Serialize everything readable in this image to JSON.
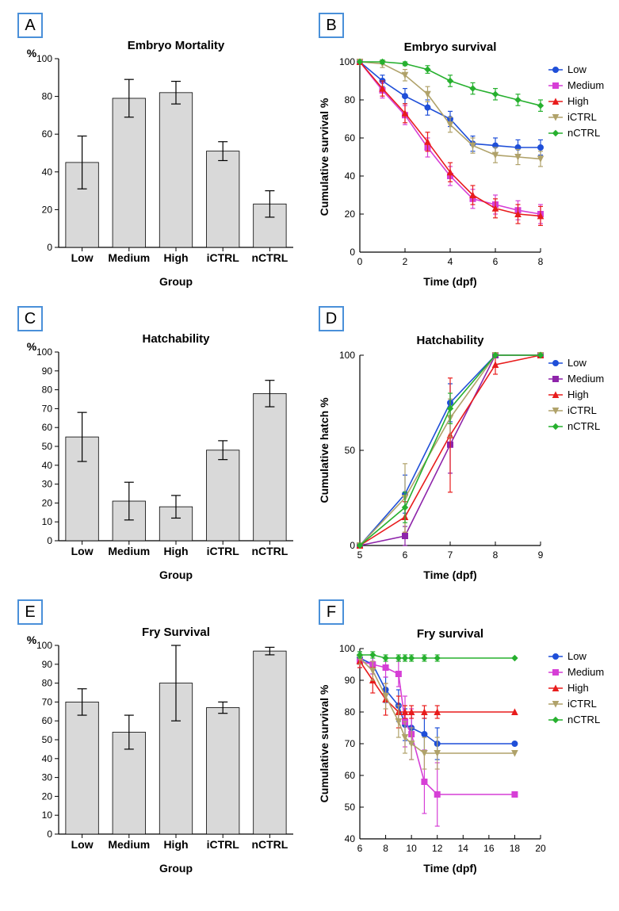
{
  "panels": {
    "A": {
      "label": "A",
      "type": "bar",
      "title": "Embryo Mortality",
      "ylabel": "%",
      "xlabel": "Group",
      "ylim": [
        0,
        100
      ],
      "ytick_step": 20,
      "categories": [
        "Low",
        "Medium",
        "High",
        "iCTRL",
        "nCTRL"
      ],
      "values": [
        45,
        79,
        82,
        51,
        23
      ],
      "errors": [
        14,
        10,
        6,
        5,
        7
      ],
      "bar_fill": "#d9d9d9",
      "bar_stroke": "#000000",
      "bg": "#ffffff",
      "label_fontsize": 12,
      "title_fontsize": 15
    },
    "B": {
      "label": "B",
      "type": "line",
      "title": "Embryo survival",
      "ylabel": "Cumulative survival %",
      "xlabel": "Time (dpf)",
      "xlim": [
        0,
        8
      ],
      "ylim": [
        0,
        100
      ],
      "xtick_step": 2,
      "ytick_step": 20,
      "ticks_inside": true,
      "series": [
        {
          "name": "Low",
          "color": "#1f4fd8",
          "marker": "circle",
          "x": [
            0,
            1,
            2,
            3,
            4,
            5,
            6,
            7,
            8
          ],
          "y": [
            100,
            90,
            82,
            76,
            70,
            57,
            56,
            55,
            55
          ],
          "err": [
            0,
            3,
            4,
            4,
            4,
            4,
            4,
            4,
            4
          ]
        },
        {
          "name": "Medium",
          "color": "#d63fd6",
          "marker": "square",
          "x": [
            0,
            1,
            2,
            3,
            4,
            5,
            6,
            7,
            8
          ],
          "y": [
            100,
            85,
            72,
            55,
            40,
            28,
            25,
            22,
            20
          ],
          "err": [
            0,
            4,
            5,
            5,
            5,
            5,
            5,
            5,
            5
          ]
        },
        {
          "name": "High",
          "color": "#e81c1c",
          "marker": "triangle",
          "x": [
            0,
            1,
            2,
            3,
            4,
            5,
            6,
            7,
            8
          ],
          "y": [
            100,
            86,
            73,
            58,
            42,
            30,
            23,
            20,
            19
          ],
          "err": [
            0,
            4,
            5,
            5,
            5,
            5,
            5,
            5,
            5
          ]
        },
        {
          "name": "iCTRL",
          "color": "#b0a26a",
          "marker": "invtriangle",
          "x": [
            0,
            1,
            2,
            3,
            4,
            5,
            6,
            7,
            8
          ],
          "y": [
            100,
            99,
            93,
            83,
            67,
            56,
            51,
            50,
            49
          ],
          "err": [
            0,
            2,
            3,
            4,
            4,
            4,
            4,
            4,
            4
          ]
        },
        {
          "name": "nCTRL",
          "color": "#27b02f",
          "marker": "diamond",
          "x": [
            0,
            1,
            2,
            3,
            4,
            5,
            6,
            7,
            8
          ],
          "y": [
            100,
            100,
            99,
            96,
            90,
            86,
            83,
            80,
            77
          ],
          "err": [
            0,
            1,
            1,
            2,
            3,
            3,
            3,
            3,
            3
          ]
        }
      ],
      "bg": "#ffffff"
    },
    "C": {
      "label": "C",
      "type": "bar",
      "title": "Hatchability",
      "ylabel": "%",
      "xlabel": "Group",
      "ylim": [
        0,
        100
      ],
      "ytick_step": 10,
      "categories": [
        "Low",
        "Medium",
        "High",
        "iCTRL",
        "nCTRL"
      ],
      "values": [
        55,
        21,
        18,
        48,
        78
      ],
      "errors": [
        13,
        10,
        6,
        5,
        7
      ],
      "bar_fill": "#d9d9d9",
      "bar_stroke": "#000000",
      "bg": "#ffffff",
      "label_fontsize": 12,
      "title_fontsize": 15
    },
    "D": {
      "label": "D",
      "type": "line",
      "title": "Hatchability",
      "ylabel": "Cumulative hatch %",
      "xlabel": "Time (dpf)",
      "xlim": [
        5,
        9
      ],
      "ylim": [
        0,
        100
      ],
      "xtick_step": 1,
      "ytick_step": 50,
      "ticks_inside": true,
      "series": [
        {
          "name": "Low",
          "color": "#1f4fd8",
          "marker": "circle",
          "x": [
            5,
            6,
            7,
            8,
            9
          ],
          "y": [
            0,
            27,
            75,
            100,
            100
          ],
          "err": [
            0,
            10,
            10,
            0,
            0
          ]
        },
        {
          "name": "Medium",
          "color": "#8e24aa",
          "marker": "square",
          "x": [
            5,
            6,
            7,
            8,
            9
          ],
          "y": [
            0,
            5,
            53,
            100,
            100
          ],
          "err": [
            0,
            5,
            15,
            0,
            0
          ]
        },
        {
          "name": "High",
          "color": "#e81c1c",
          "marker": "triangle",
          "x": [
            5,
            6,
            7,
            8,
            9
          ],
          "y": [
            0,
            15,
            58,
            95,
            100
          ],
          "err": [
            0,
            8,
            30,
            5,
            0
          ]
        },
        {
          "name": "iCTRL",
          "color": "#b0a26a",
          "marker": "invtriangle",
          "x": [
            5,
            6,
            7,
            8,
            9
          ],
          "y": [
            0,
            25,
            67,
            100,
            100
          ],
          "err": [
            0,
            18,
            10,
            0,
            0
          ]
        },
        {
          "name": "nCTRL",
          "color": "#27b02f",
          "marker": "diamond",
          "x": [
            5,
            6,
            7,
            8,
            9
          ],
          "y": [
            0,
            20,
            72,
            100,
            100
          ],
          "err": [
            0,
            8,
            8,
            0,
            0
          ]
        }
      ],
      "bg": "#ffffff"
    },
    "E": {
      "label": "E",
      "type": "bar",
      "title": "Fry Survival",
      "ylabel": "%",
      "xlabel": "Group",
      "ylim": [
        0,
        100
      ],
      "ytick_step": 10,
      "categories": [
        "Low",
        "Medium",
        "High",
        "iCTRL",
        "nCTRL"
      ],
      "values": [
        70,
        54,
        80,
        67,
        97
      ],
      "errors": [
        7,
        9,
        20,
        3,
        2
      ],
      "bar_fill": "#d9d9d9",
      "bar_stroke": "#000000",
      "bg": "#ffffff",
      "label_fontsize": 12,
      "title_fontsize": 15
    },
    "F": {
      "label": "F",
      "type": "line",
      "title": "Fry survival",
      "ylabel": "Cumulative survival %",
      "xlabel": "Time (dpf)",
      "xlim": [
        6,
        20
      ],
      "ylim": [
        40,
        100
      ],
      "xtick_step": 2,
      "ytick_step": 10,
      "ticks_inside": true,
      "series": [
        {
          "name": "Low",
          "color": "#1f4fd8",
          "marker": "circle",
          "x": [
            6,
            7,
            8,
            9,
            9.5,
            10,
            11,
            12,
            18
          ],
          "y": [
            97,
            95,
            87,
            82,
            76,
            75,
            73,
            70,
            70
          ],
          "err": [
            2,
            3,
            4,
            5,
            5,
            5,
            5,
            5,
            0
          ]
        },
        {
          "name": "Medium",
          "color": "#d63fd6",
          "marker": "square",
          "x": [
            6,
            7,
            8,
            9,
            9.5,
            10,
            11,
            12,
            18
          ],
          "y": [
            96,
            95,
            94,
            92,
            77,
            73,
            58,
            54,
            54
          ],
          "err": [
            2,
            3,
            3,
            4,
            8,
            8,
            10,
            10,
            0
          ]
        },
        {
          "name": "High",
          "color": "#e81c1c",
          "marker": "triangle",
          "x": [
            6,
            7,
            8,
            9,
            9.5,
            10,
            11,
            12,
            18
          ],
          "y": [
            96,
            90,
            84,
            80,
            80,
            80,
            80,
            80,
            80
          ],
          "err": [
            2,
            4,
            5,
            5,
            2,
            2,
            2,
            2,
            0
          ]
        },
        {
          "name": "iCTRL",
          "color": "#b0a26a",
          "marker": "invtriangle",
          "x": [
            6,
            7,
            8,
            9,
            9.5,
            10,
            11,
            12,
            18
          ],
          "y": [
            97,
            93,
            85,
            77,
            72,
            70,
            67,
            67,
            67
          ],
          "err": [
            2,
            3,
            4,
            5,
            5,
            5,
            5,
            5,
            0
          ]
        },
        {
          "name": "nCTRL",
          "color": "#27b02f",
          "marker": "diamond",
          "x": [
            6,
            7,
            8,
            9,
            9.5,
            10,
            11,
            12,
            18
          ],
          "y": [
            98,
            98,
            97,
            97,
            97,
            97,
            97,
            97,
            97
          ],
          "err": [
            1,
            1,
            1,
            1,
            1,
            1,
            1,
            1,
            0
          ]
        }
      ],
      "bg": "#ffffff"
    }
  },
  "panel_label_border": "#4a90d9",
  "panel_label_fontsize": 20
}
